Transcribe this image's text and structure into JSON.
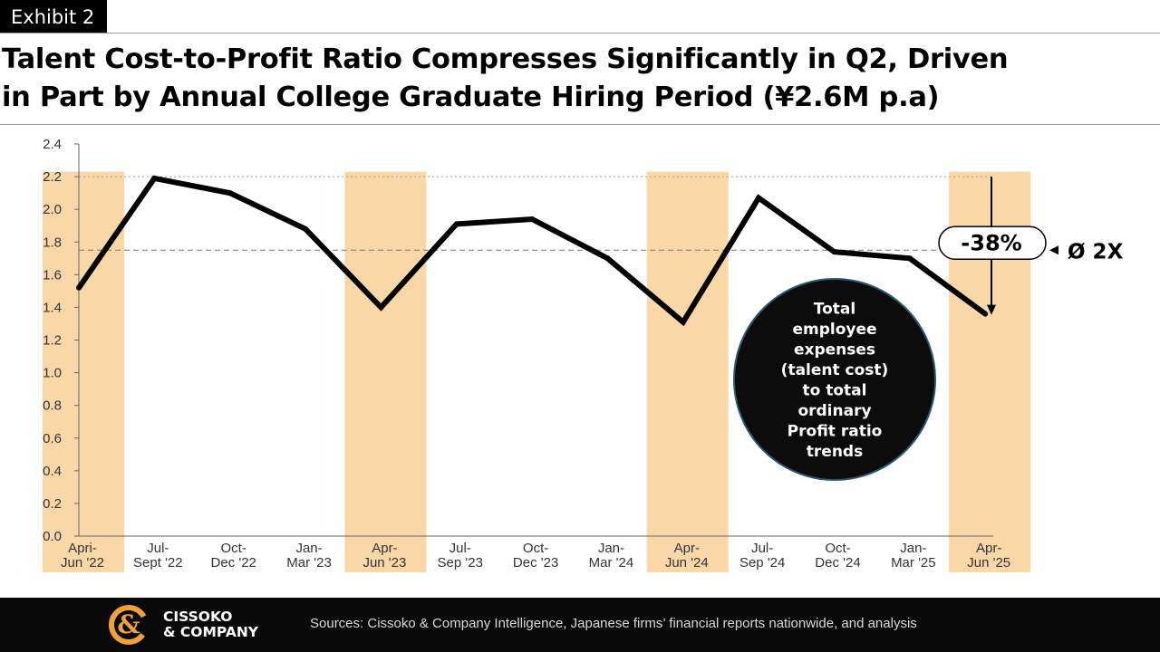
{
  "exhibit_label": "Exhibit 2",
  "title_line1": "Talent Cost-to-Profit Ratio Compresses Significantly in Q2, Driven",
  "title_line2": "in Part by Annual College Graduate Hiring Period (¥2.6M p.a)",
  "chart_data": {
    "type": "line",
    "title": "",
    "xlabel": "",
    "ylabel": "",
    "ylim": [
      0,
      2.4
    ],
    "yticks": [
      "0.0",
      "0.2",
      "0.4",
      "0.6",
      "0.8",
      "1.0",
      "1.2",
      "1.4",
      "1.6",
      "1.8",
      "2.0",
      "2.2",
      "2.4"
    ],
    "categories": [
      [
        "Apri-",
        "Jun '22"
      ],
      [
        "Jul-",
        "Sept '22"
      ],
      [
        "Oct-",
        "Dec '22"
      ],
      [
        "Jan-",
        "Mar '23"
      ],
      [
        "Apr-",
        "Jun '23"
      ],
      [
        "Jul-",
        "Sep '23"
      ],
      [
        "Oct-",
        "Dec '23"
      ],
      [
        "Jan-",
        "Mar '24"
      ],
      [
        "Apr-",
        "Jun '24"
      ],
      [
        "Jul-",
        "Sep '24"
      ],
      [
        "Oct-",
        "Dec '24"
      ],
      [
        "Jan-",
        "Mar '25"
      ],
      [
        "Apr-",
        "Jun '25"
      ]
    ],
    "series": [
      {
        "values": [
          1.52,
          2.19,
          2.1,
          1.88,
          1.4,
          1.91,
          1.94,
          1.7,
          1.31,
          2.07,
          1.74,
          1.7,
          1.36
        ],
        "color": "#000000"
      }
    ],
    "highlighted_quarters": [
      0,
      4,
      8,
      12
    ],
    "highlight_color": "#f9d7a6",
    "reference_lines": [
      {
        "value": 2.2,
        "style": "dotted"
      },
      {
        "value": 1.75,
        "style": "dashed"
      }
    ],
    "change_annotation": {
      "label": "-38%",
      "from": 2.2,
      "to": 1.36
    },
    "average_label": "Ø 2X",
    "callout_text": [
      "Total",
      "employee",
      "expenses",
      "(talent cost)",
      "to total",
      "ordinary",
      "Profit ratio",
      "trends"
    ],
    "grid": false
  },
  "footer": {
    "brand_line1": "CISSOKO",
    "brand_line2": "& COMPANY",
    "sources": "Sources: Cissoko & Company Intelligence, Japanese firms’ financial reports nationwide, and analysis",
    "logo_color": "#f0a23a"
  }
}
